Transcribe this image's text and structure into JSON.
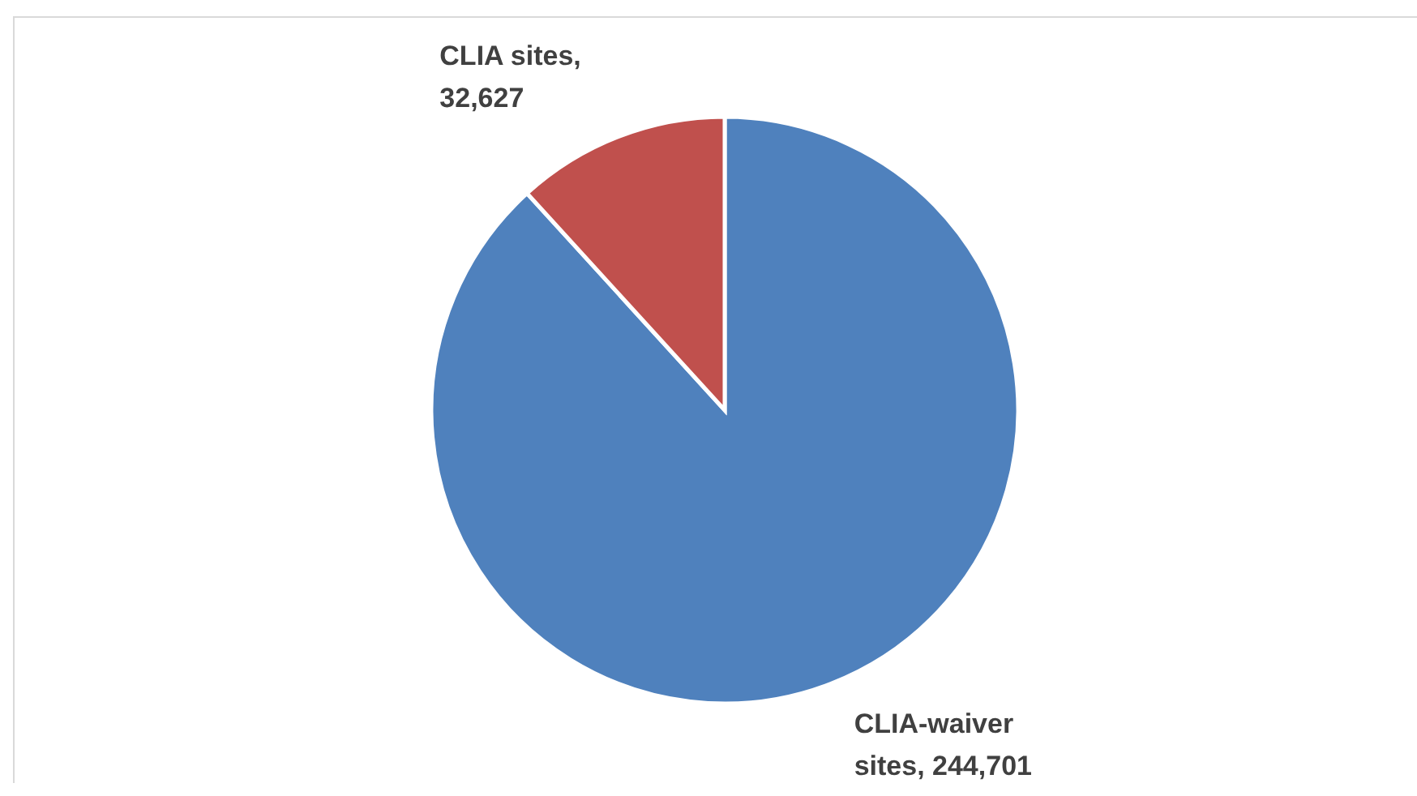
{
  "chart_data": {
    "type": "pie",
    "categories": [
      "CLIA-waiver sites",
      "CLIA sites"
    ],
    "values": [
      244701,
      32627
    ],
    "value_labels": [
      ", 244,701",
      ", 32,627"
    ],
    "colors": [
      "#4f81bd",
      "#c0504d"
    ]
  }
}
